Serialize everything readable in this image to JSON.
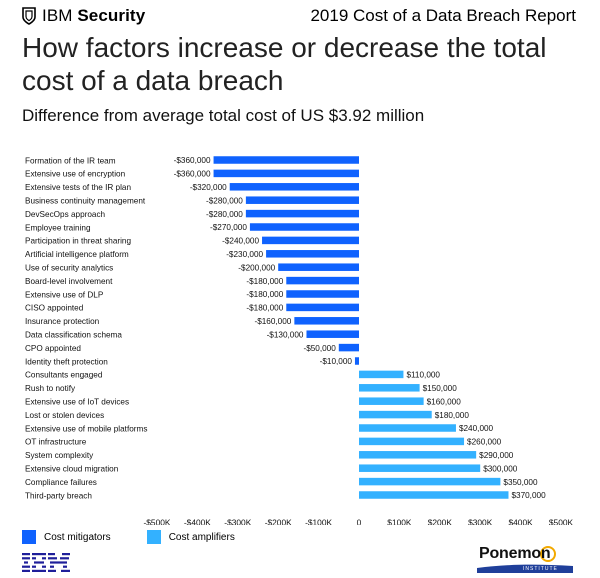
{
  "header": {
    "brand_prefix": "IBM",
    "brand_name": "Security",
    "report_title": "2019 Cost of a Data Breach Report"
  },
  "chart_data": {
    "type": "bar",
    "orientation": "horizontal",
    "title": "How factors increase or decrease the total cost of a data breach",
    "subtitle": "Difference from average total cost of US $3.92 million",
    "categories": [
      "Formation of the IR team",
      "Extensive use of encryption",
      "Extensive tests of the IR plan",
      "Business continuity management",
      "DevSecOps approach",
      "Employee training",
      "Participation in threat sharing",
      "Artificial intelligence platform",
      "Use of security analytics",
      "Board-level involvement",
      "Extensive use of DLP",
      "CISO appointed",
      "Insurance protection",
      "Data classification schema",
      "CPO appointed",
      "Identity theft protection",
      "Consultants engaged",
      "Rush to notify",
      "Extensive use of IoT devices",
      "Lost or stolen devices",
      "Extensive use of mobile platforms",
      "OT infrastructure",
      "System complexity",
      "Extensive cloud migration",
      "Compliance failures",
      "Third-party breach"
    ],
    "values": [
      -360000,
      -360000,
      -320000,
      -280000,
      -280000,
      -270000,
      -240000,
      -230000,
      -200000,
      -180000,
      -180000,
      -180000,
      -160000,
      -130000,
      -50000,
      -10000,
      110000,
      150000,
      160000,
      180000,
      240000,
      260000,
      290000,
      300000,
      350000,
      370000
    ],
    "value_labels": [
      "-$360,000",
      "-$360,000",
      "-$320,000",
      "-$280,000",
      "-$280,000",
      "-$270,000",
      "-$240,000",
      "-$230,000",
      "-$200,000",
      "-$180,000",
      "-$180,000",
      "-$180,000",
      "-$160,000",
      "-$130,000",
      "-$50,000",
      "-$10,000",
      "$110,000",
      "$150,000",
      "$160,000",
      "$180,000",
      "$240,000",
      "$260,000",
      "$290,000",
      "$300,000",
      "$350,000",
      "$370,000"
    ],
    "series": [
      {
        "name": "Cost mitigators",
        "color": "#0f62fe"
      },
      {
        "name": "Cost amplifiers",
        "color": "#33b1ff"
      }
    ],
    "xlim": [
      -500000,
      500000
    ],
    "xticks": [
      -500000,
      -400000,
      -300000,
      -200000,
      -100000,
      0,
      100000,
      200000,
      300000,
      400000,
      500000
    ],
    "xtick_labels": [
      "-$500K",
      "-$400K",
      "-$300K",
      "-$200K",
      "-$100K",
      "0",
      "$100K",
      "$200K",
      "$300K",
      "$400K",
      "$500K"
    ],
    "grid": false,
    "legend_position": "bottom-left"
  },
  "footer": {
    "ponemon_name": "Ponemon",
    "ponemon_sub": "INSTITUTE"
  }
}
